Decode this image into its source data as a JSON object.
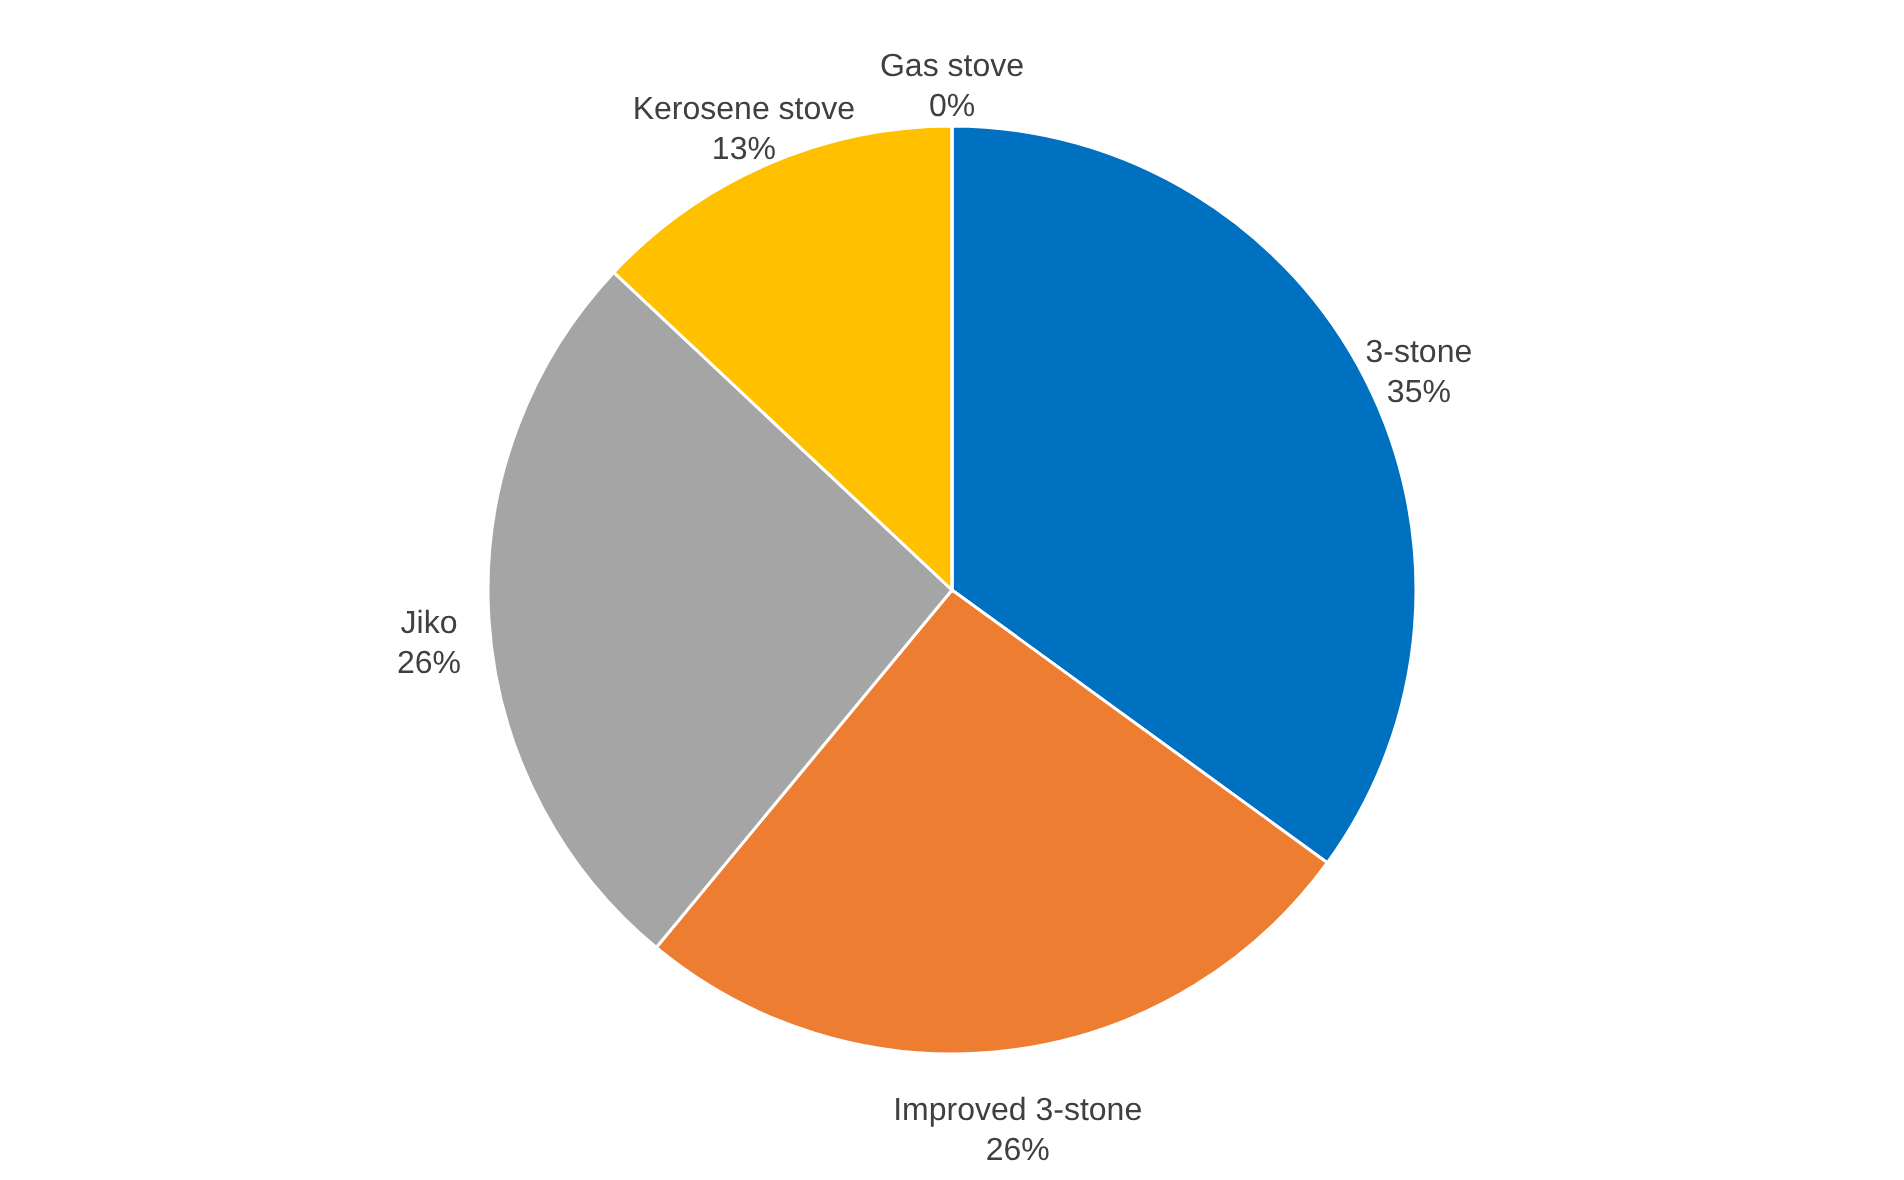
{
  "chart_data": {
    "type": "pie",
    "categories": [
      "3-stone",
      "Improved 3-stone",
      "Jiko",
      "Kerosene stove",
      "Gas stove"
    ],
    "values": [
      35,
      26,
      26,
      13,
      0
    ],
    "value_labels": [
      "35%",
      "26%",
      "26%",
      "13%",
      "0%"
    ],
    "colors": [
      "#0070c0",
      "#ed7d31",
      "#a5a5a5",
      "#ffc000",
      "#5b9bd5"
    ]
  }
}
